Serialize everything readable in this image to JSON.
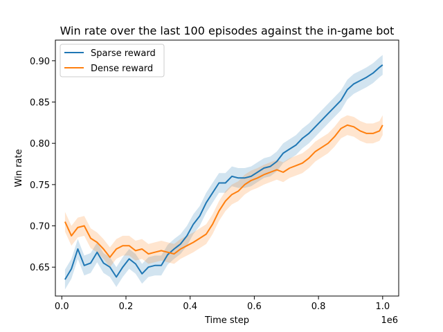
{
  "chart_data": {
    "type": "line",
    "title": "Win rate over the last 100 episodes against the in-game bot",
    "xlabel": "Time step",
    "ylabel": "Win rate",
    "x_offset_label": "1e6",
    "x_scale": 1000000,
    "xlim": [
      -0.02,
      1.05
    ],
    "ylim": [
      0.615,
      0.925
    ],
    "x_ticks": [
      0.0,
      0.2,
      0.4,
      0.6,
      0.8,
      1.0
    ],
    "x_tick_labels": [
      "0.0",
      "0.2",
      "0.4",
      "0.6",
      "0.8",
      "1.0"
    ],
    "y_ticks": [
      0.65,
      0.7,
      0.75,
      0.8,
      0.85,
      0.9
    ],
    "y_tick_labels": [
      "0.65",
      "0.70",
      "0.75",
      "0.80",
      "0.85",
      "0.90"
    ],
    "legend_position": "top-left",
    "series": [
      {
        "name": "Sparse reward",
        "color": "#1f77b4",
        "x": [
          0.01,
          0.03,
          0.05,
          0.07,
          0.09,
          0.11,
          0.13,
          0.15,
          0.17,
          0.19,
          0.21,
          0.23,
          0.25,
          0.27,
          0.29,
          0.31,
          0.33,
          0.35,
          0.37,
          0.39,
          0.41,
          0.43,
          0.45,
          0.47,
          0.49,
          0.51,
          0.53,
          0.55,
          0.57,
          0.59,
          0.61,
          0.63,
          0.65,
          0.67,
          0.69,
          0.71,
          0.73,
          0.75,
          0.77,
          0.79,
          0.81,
          0.83,
          0.85,
          0.87,
          0.89,
          0.91,
          0.93,
          0.95,
          0.97,
          0.99,
          1.0
        ],
        "y": [
          0.635,
          0.648,
          0.672,
          0.652,
          0.655,
          0.668,
          0.655,
          0.65,
          0.638,
          0.65,
          0.66,
          0.654,
          0.642,
          0.65,
          0.652,
          0.652,
          0.665,
          0.672,
          0.678,
          0.688,
          0.702,
          0.712,
          0.728,
          0.74,
          0.752,
          0.752,
          0.76,
          0.758,
          0.758,
          0.76,
          0.765,
          0.77,
          0.772,
          0.778,
          0.788,
          0.793,
          0.798,
          0.806,
          0.812,
          0.82,
          0.828,
          0.836,
          0.844,
          0.852,
          0.865,
          0.872,
          0.876,
          0.88,
          0.885,
          0.892,
          0.895
        ],
        "band": 0.012
      },
      {
        "name": "Dense reward",
        "color": "#ff7f0e",
        "x": [
          0.01,
          0.03,
          0.05,
          0.07,
          0.09,
          0.11,
          0.13,
          0.15,
          0.17,
          0.19,
          0.21,
          0.23,
          0.25,
          0.27,
          0.29,
          0.31,
          0.33,
          0.35,
          0.37,
          0.39,
          0.41,
          0.43,
          0.45,
          0.47,
          0.49,
          0.51,
          0.53,
          0.55,
          0.57,
          0.59,
          0.61,
          0.63,
          0.65,
          0.67,
          0.69,
          0.71,
          0.73,
          0.75,
          0.77,
          0.79,
          0.81,
          0.83,
          0.85,
          0.87,
          0.89,
          0.91,
          0.93,
          0.95,
          0.97,
          0.99,
          1.0
        ],
        "y": [
          0.705,
          0.688,
          0.698,
          0.7,
          0.685,
          0.68,
          0.672,
          0.662,
          0.672,
          0.676,
          0.676,
          0.67,
          0.672,
          0.666,
          0.668,
          0.67,
          0.668,
          0.666,
          0.672,
          0.676,
          0.68,
          0.685,
          0.69,
          0.702,
          0.718,
          0.73,
          0.738,
          0.742,
          0.75,
          0.755,
          0.758,
          0.762,
          0.765,
          0.768,
          0.765,
          0.77,
          0.773,
          0.776,
          0.782,
          0.79,
          0.795,
          0.8,
          0.808,
          0.818,
          0.822,
          0.82,
          0.815,
          0.812,
          0.812,
          0.815,
          0.822
        ],
        "band": 0.012
      }
    ]
  }
}
